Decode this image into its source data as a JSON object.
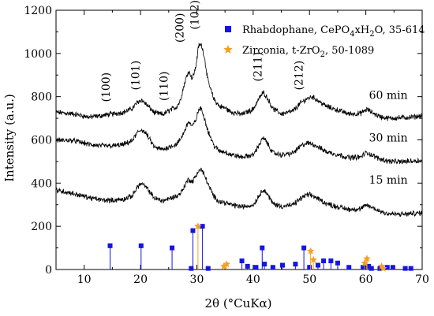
{
  "chart_data": {
    "type": "line",
    "xlabel": "2θ (°CuKα)",
    "ylabel": "Intensity (a.u.)",
    "xlim": [
      5,
      70
    ],
    "ylim": [
      0,
      1200
    ],
    "x_ticks": [
      10,
      20,
      30,
      40,
      50,
      60,
      70
    ],
    "y_ticks": [
      0,
      200,
      400,
      600,
      800,
      1000,
      1200
    ],
    "legend_position": "top-right",
    "colors": {
      "rhabdophane": "#1414e6",
      "zirconia": "#f5a023",
      "pattern": "#000000"
    },
    "legend": [
      {
        "marker": "square",
        "color": "#1414e6",
        "text_main": "Rhabdophane, CePO",
        "sub1": "4",
        "text_mid": "xH",
        "sub2": "2",
        "text_end": "O, 35-614"
      },
      {
        "marker": "star",
        "color": "#f5a023",
        "text_main": "Zirconia, t-ZrO",
        "sub1": "2",
        "text_end": ", 50-1089"
      }
    ],
    "series": [
      {
        "name": "60 min",
        "baseline": 720,
        "label_pos": [
          64,
          790
        ],
        "points": [
          [
            5,
            728
          ],
          [
            8,
            720
          ],
          [
            11,
            705
          ],
          [
            13,
            712
          ],
          [
            15,
            720
          ],
          [
            17,
            728
          ],
          [
            18.5,
            745
          ],
          [
            19.5,
            775
          ],
          [
            20.2,
            785
          ],
          [
            21,
            765
          ],
          [
            22.5,
            725
          ],
          [
            24,
            718
          ],
          [
            25.5,
            742
          ],
          [
            26.3,
            750
          ],
          [
            27,
            778
          ],
          [
            27.8,
            860
          ],
          [
            28.5,
            920
          ],
          [
            29.2,
            885
          ],
          [
            29.8,
            935
          ],
          [
            30.3,
            1035
          ],
          [
            30.8,
            1040
          ],
          [
            31.3,
            990
          ],
          [
            32,
            870
          ],
          [
            33,
            790
          ],
          [
            34,
            755
          ],
          [
            35,
            748
          ],
          [
            36,
            730
          ],
          [
            38,
            718
          ],
          [
            40,
            742
          ],
          [
            41,
            790
          ],
          [
            41.8,
            820
          ],
          [
            42.5,
            795
          ],
          [
            43.5,
            745
          ],
          [
            45,
            720
          ],
          [
            47,
            732
          ],
          [
            48.5,
            772
          ],
          [
            49.5,
            790
          ],
          [
            50.5,
            800
          ],
          [
            51.5,
            782
          ],
          [
            53,
            755
          ],
          [
            55,
            738
          ],
          [
            57,
            720
          ],
          [
            59,
            722
          ],
          [
            60.2,
            742
          ],
          [
            61,
            728
          ],
          [
            62.5,
            708
          ],
          [
            64,
            700
          ],
          [
            66,
            702
          ],
          [
            68,
            705
          ],
          [
            70,
            712
          ]
        ]
      },
      {
        "name": "30 min",
        "baseline": 520,
        "label_pos": [
          64,
          592
        ],
        "points": [
          [
            5,
            598
          ],
          [
            8,
            598
          ],
          [
            11,
            578
          ],
          [
            13,
            572
          ],
          [
            15,
            572
          ],
          [
            17,
            578
          ],
          [
            18.5,
            595
          ],
          [
            19.5,
            635
          ],
          [
            20.2,
            648
          ],
          [
            21,
            628
          ],
          [
            22.5,
            565
          ],
          [
            24,
            555
          ],
          [
            25.5,
            572
          ],
          [
            26.3,
            578
          ],
          [
            27,
            598
          ],
          [
            27.8,
            640
          ],
          [
            28.5,
            685
          ],
          [
            29.2,
            662
          ],
          [
            29.8,
            690
          ],
          [
            30.3,
            738
          ],
          [
            30.8,
            745
          ],
          [
            31.3,
            705
          ],
          [
            32,
            640
          ],
          [
            33,
            575
          ],
          [
            34,
            548
          ],
          [
            35,
            545
          ],
          [
            36,
            532
          ],
          [
            38,
            520
          ],
          [
            40,
            530
          ],
          [
            41,
            575
          ],
          [
            41.8,
            610
          ],
          [
            42.5,
            585
          ],
          [
            43.5,
            540
          ],
          [
            45,
            530
          ],
          [
            47,
            538
          ],
          [
            48.5,
            572
          ],
          [
            49.5,
            585
          ],
          [
            50.5,
            582
          ],
          [
            51.5,
            568
          ],
          [
            53,
            545
          ],
          [
            55,
            532
          ],
          [
            57,
            518
          ],
          [
            59,
            520
          ],
          [
            60.2,
            542
          ],
          [
            61,
            530
          ],
          [
            62.5,
            512
          ],
          [
            64,
            502
          ],
          [
            66,
            498
          ],
          [
            68,
            502
          ],
          [
            70,
            505
          ]
        ]
      },
      {
        "name": "15 min",
        "baseline": 280,
        "label_pos": [
          64,
          398
        ],
        "points": [
          [
            5,
            368
          ],
          [
            8,
            352
          ],
          [
            11,
            332
          ],
          [
            13,
            322
          ],
          [
            15,
            320
          ],
          [
            17,
            325
          ],
          [
            18.5,
            340
          ],
          [
            19.5,
            385
          ],
          [
            20.2,
            398
          ],
          [
            21,
            380
          ],
          [
            22.5,
            330
          ],
          [
            24,
            318
          ],
          [
            25.5,
            332
          ],
          [
            26.3,
            338
          ],
          [
            27,
            350
          ],
          [
            27.8,
            385
          ],
          [
            28.5,
            418
          ],
          [
            29.2,
            405
          ],
          [
            29.8,
            432
          ],
          [
            30.3,
            458
          ],
          [
            30.8,
            462
          ],
          [
            31.3,
            440
          ],
          [
            32,
            395
          ],
          [
            33,
            338
          ],
          [
            34,
            315
          ],
          [
            35,
            310
          ],
          [
            36,
            300
          ],
          [
            38,
            290
          ],
          [
            40,
            298
          ],
          [
            41,
            340
          ],
          [
            41.8,
            372
          ],
          [
            42.5,
            350
          ],
          [
            43.5,
            305
          ],
          [
            45,
            292
          ],
          [
            47,
            298
          ],
          [
            48.5,
            330
          ],
          [
            49.5,
            345
          ],
          [
            50.5,
            342
          ],
          [
            51.5,
            328
          ],
          [
            53,
            305
          ],
          [
            55,
            290
          ],
          [
            57,
            278
          ],
          [
            59,
            280
          ],
          [
            60.2,
            298
          ],
          [
            61,
            288
          ],
          [
            62.5,
            270
          ],
          [
            64,
            258
          ],
          [
            66,
            255
          ],
          [
            68,
            258
          ],
          [
            70,
            262
          ]
        ]
      }
    ],
    "hkl_labels": [
      {
        "text": "(100)",
        "x": 14.5,
        "y": 775
      },
      {
        "text": "(101)",
        "x": 19.8,
        "y": 830
      },
      {
        "text": "(110)",
        "x": 24.8,
        "y": 780
      },
      {
        "text": "(200)",
        "x": 27.6,
        "y": 1050
      },
      {
        "text": "(102)",
        "x": 30.3,
        "y": 1110
      },
      {
        "text": "(211)",
        "x": 41.5,
        "y": 870
      },
      {
        "text": "(212)",
        "x": 48.8,
        "y": 830
      }
    ],
    "rhabdophane_refs": [
      [
        14.6,
        110
      ],
      [
        20.1,
        110
      ],
      [
        25.6,
        100
      ],
      [
        29.0,
        5
      ],
      [
        29.3,
        180
      ],
      [
        31.0,
        200
      ],
      [
        32.0,
        5
      ],
      [
        38.0,
        40
      ],
      [
        39.0,
        15
      ],
      [
        40.5,
        10
      ],
      [
        41.6,
        100
      ],
      [
        42.0,
        25
      ],
      [
        43.5,
        10
      ],
      [
        45.2,
        20
      ],
      [
        47.5,
        25
      ],
      [
        49.0,
        100
      ],
      [
        50.0,
        10
      ],
      [
        51.5,
        20
      ],
      [
        52.5,
        40
      ],
      [
        53.8,
        40
      ],
      [
        55.0,
        30
      ],
      [
        57.0,
        10
      ],
      [
        59.5,
        10
      ],
      [
        60.5,
        15
      ],
      [
        61.0,
        5
      ],
      [
        62.5,
        5
      ],
      [
        63.8,
        10
      ],
      [
        64.8,
        10
      ],
      [
        67.0,
        5
      ],
      [
        68.0,
        5
      ]
    ],
    "zirconia_refs": [
      [
        30.2,
        200
      ],
      [
        34.8,
        15
      ],
      [
        35.3,
        25
      ],
      [
        50.2,
        85
      ],
      [
        50.7,
        45
      ],
      [
        59.8,
        30
      ],
      [
        60.2,
        50
      ],
      [
        62.8,
        15
      ],
      [
        63.1,
        5
      ]
    ],
    "pattern_noise_amplitude": 10
  }
}
